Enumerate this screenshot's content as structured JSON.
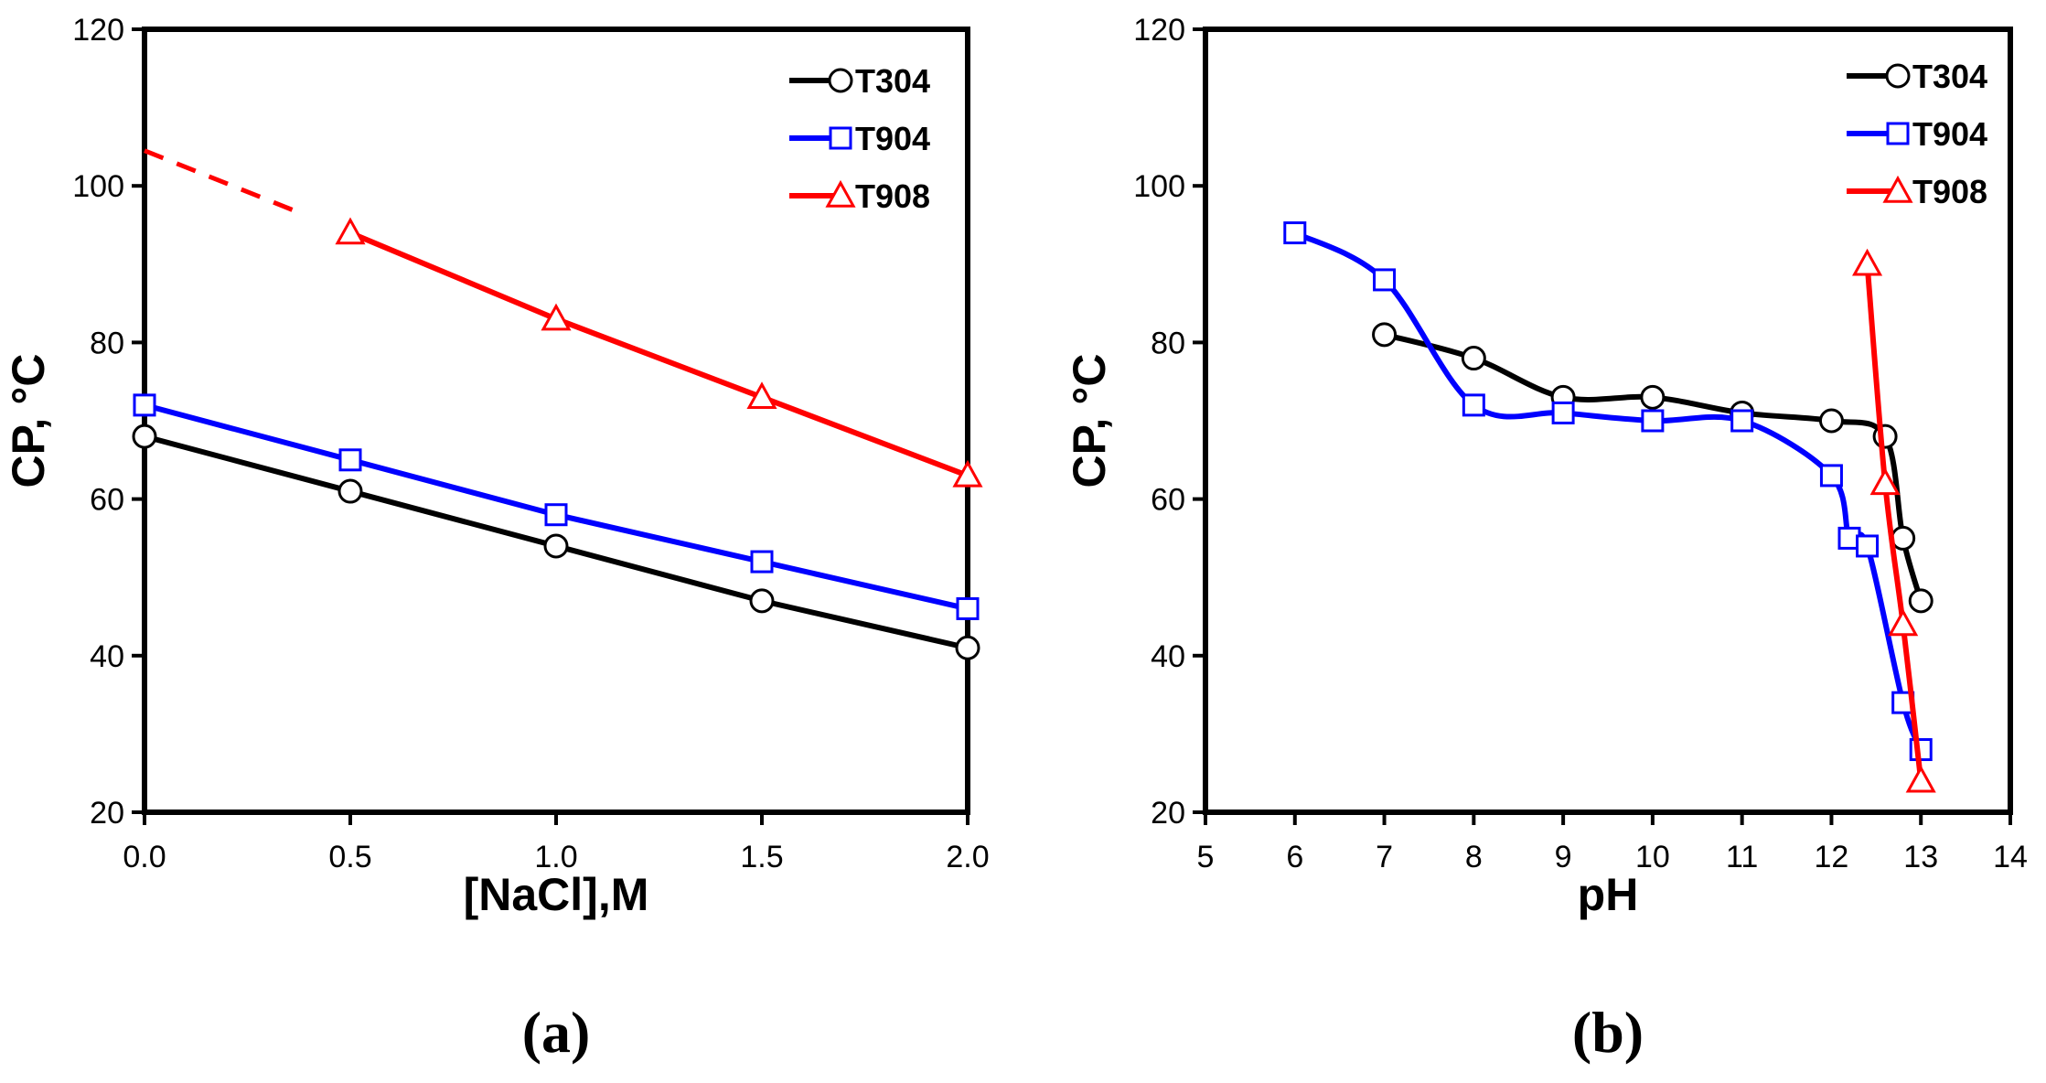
{
  "chart_data": [
    {
      "type": "line",
      "panel_label": "(a)",
      "xlabel": "[NaCl],M",
      "ylabel": "CP, °C",
      "xlim": [
        0.0,
        2.0
      ],
      "ylim": [
        20,
        120
      ],
      "xticks": [
        "0.0",
        "0.5",
        "1.0",
        "1.5",
        "2.0"
      ],
      "yticks": [
        "20",
        "40",
        "60",
        "80",
        "100",
        "120"
      ],
      "legend_position": "top-right",
      "series": [
        {
          "name": "T304",
          "color": "#000000",
          "marker": "circle",
          "x": [
            0.0,
            0.5,
            1.0,
            1.5,
            2.0
          ],
          "y": [
            68,
            61,
            54,
            47,
            41
          ]
        },
        {
          "name": "T904",
          "color": "#0000ff",
          "marker": "square",
          "x": [
            0.0,
            0.5,
            1.0,
            1.5,
            2.0
          ],
          "y": [
            72,
            65,
            58,
            52,
            46
          ]
        },
        {
          "name": "T908",
          "color": "#ff0000",
          "marker": "triangle",
          "x": [
            0.5,
            1.0,
            1.5,
            2.0
          ],
          "y": [
            94,
            83,
            73,
            63
          ],
          "extrapolation": {
            "x": [
              0.0,
              0.38
            ],
            "y": [
              104.5,
              96.5
            ]
          }
        }
      ]
    },
    {
      "type": "line",
      "panel_label": "(b)",
      "xlabel": "pH",
      "ylabel": "CP, °C",
      "xlim": [
        5,
        14
      ],
      "ylim": [
        20,
        120
      ],
      "xticks": [
        "5",
        "6",
        "7",
        "8",
        "9",
        "10",
        "11",
        "12",
        "13",
        "14"
      ],
      "yticks": [
        "20",
        "40",
        "60",
        "80",
        "100",
        "120"
      ],
      "legend_position": "top-right",
      "series": [
        {
          "name": "T304",
          "color": "#000000",
          "marker": "circle",
          "x": [
            7,
            8,
            9,
            10,
            11,
            12,
            12.6,
            12.8,
            13
          ],
          "y": [
            81,
            78,
            73,
            73,
            71,
            70,
            68,
            55,
            47
          ]
        },
        {
          "name": "T904",
          "color": "#0000ff",
          "marker": "square",
          "x": [
            6,
            7,
            8,
            9,
            10,
            11,
            12,
            12.2,
            12.4,
            12.8,
            13
          ],
          "y": [
            94,
            88,
            72,
            71,
            70,
            70,
            63,
            55,
            54,
            34,
            28
          ]
        },
        {
          "name": "T908",
          "color": "#ff0000",
          "marker": "triangle",
          "x": [
            12.4,
            12.6,
            12.8,
            13
          ],
          "y": [
            90,
            62,
            44,
            24
          ]
        }
      ]
    }
  ]
}
